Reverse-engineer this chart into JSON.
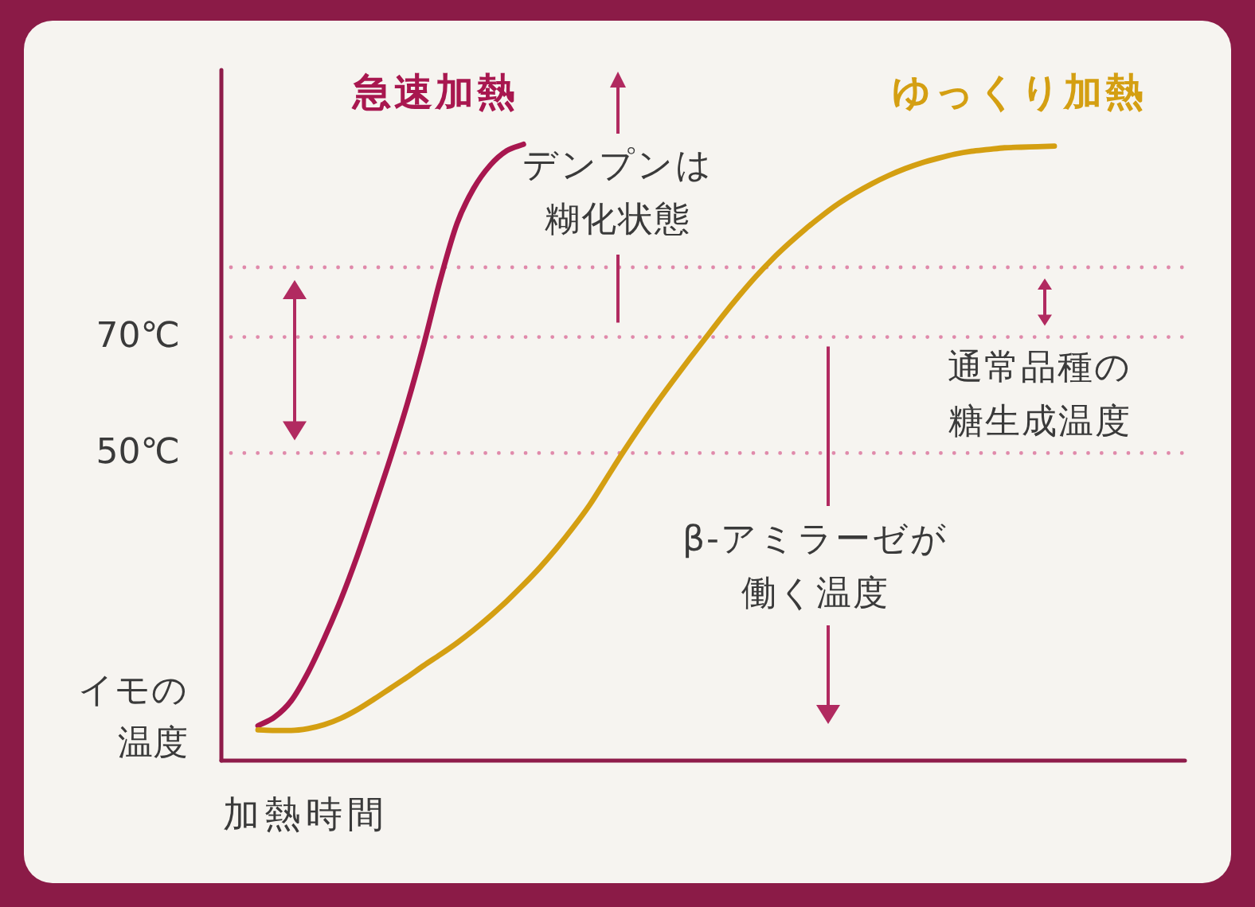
{
  "chart_data": {
    "type": "line",
    "xlabel": "加熱時間",
    "ylabel": "イモの温度",
    "categories": [
      null,
      null,
      null,
      null,
      null,
      null,
      null,
      null,
      null,
      null,
      null,
      null,
      null,
      null,
      null,
      null,
      null,
      null,
      null,
      null,
      null,
      null,
      null,
      null,
      null,
      null,
      null,
      null,
      null,
      null,
      null,
      null,
      null,
      null,
      null,
      null,
      null,
      null,
      null,
      null,
      null,
      null,
      null,
      null,
      null,
      null,
      null,
      null,
      null
    ],
    "ylim": [
      -3,
      116
    ],
    "yticks": [
      {
        "value": 70,
        "label": "70℃"
      },
      {
        "value": 50,
        "label": "50℃"
      }
    ],
    "tick_labels": "y",
    "series": [
      {
        "name": "急速加熱",
        "color": "#a8174f",
        "values": [
          3,
          4.5,
          7.3,
          12.1,
          18.1,
          24.8,
          32.4,
          40.7,
          49.3,
          58.5,
          68.8,
          80,
          89.6,
          95.6,
          99.6,
          102.1,
          103.2,
          null,
          null,
          null,
          null,
          null,
          null,
          null,
          null,
          null,
          null,
          null,
          null,
          null,
          null,
          null,
          null,
          null,
          null,
          null,
          null,
          null,
          null,
          null,
          null,
          null,
          null,
          null,
          null,
          null,
          null,
          null,
          null
        ]
      },
      {
        "name": "ゆっくり加熱",
        "color": "#d49f12",
        "values": [
          2.3,
          2.2,
          2.2,
          2.5,
          3.2,
          4.3,
          5.8,
          7.6,
          9.5,
          11.4,
          13.4,
          15.3,
          17.3,
          19.5,
          21.9,
          24.5,
          27.3,
          30.3,
          33.6,
          37.2,
          41.1,
          45.6,
          50.1,
          54.4,
          58.5,
          62.4,
          66.2,
          69.9,
          73.6,
          77.1,
          80.4,
          83.4,
          86.1,
          88.6,
          90.9,
          93,
          94.8,
          96.4,
          97.8,
          99,
          100,
          100.8,
          101.5,
          102,
          102.3,
          102.6,
          102.7,
          102.8,
          102.9
        ]
      }
    ],
    "ref_lines": [
      {
        "axis": "y",
        "value": 82,
        "color": "#e08aab",
        "line_style": "dotted"
      },
      {
        "axis": "y",
        "value": 70,
        "color": "#e08aab",
        "line_style": "dotted"
      },
      {
        "axis": "y",
        "value": 50,
        "color": "#e08aab",
        "line_style": "dotted"
      }
    ],
    "annotations": [
      "デンプンは糊化状態",
      "通常品種の糖生成温度",
      "β-アミラーゼが働く温度"
    ]
  }
}
